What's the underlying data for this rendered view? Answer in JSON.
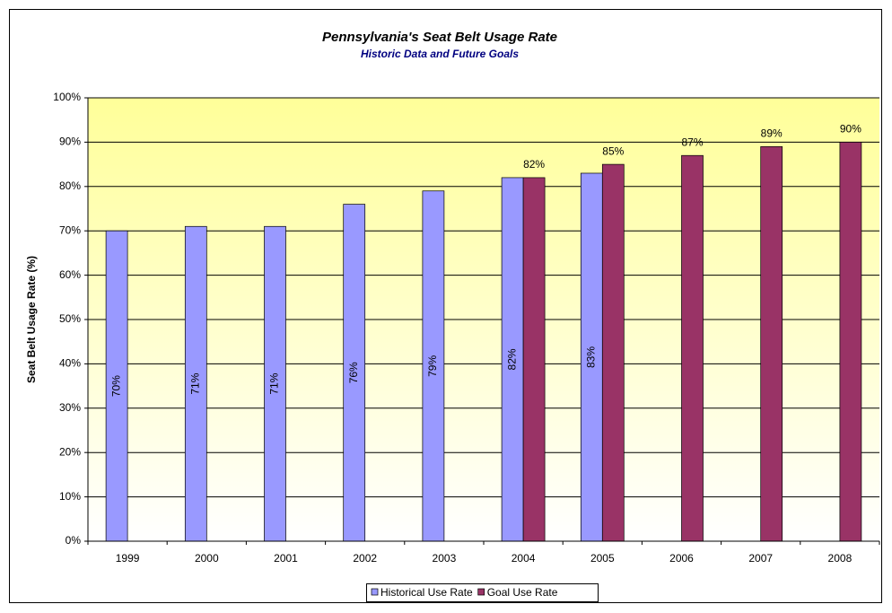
{
  "chart_data": {
    "type": "bar",
    "title": "Pennsylvania's Seat Belt Usage Rate",
    "subtitle": "Historic Data and Future Goals",
    "y_label": "Seat Belt Usage Rate (%)",
    "categories": [
      "1999",
      "2000",
      "2001",
      "2002",
      "2003",
      "2004",
      "2005",
      "2006",
      "2007",
      "2008"
    ],
    "series": [
      {
        "name": "Historical Use Rate",
        "color": "#9999ff",
        "values": [
          70,
          71,
          71,
          76,
          79,
          82,
          83,
          null,
          null,
          null
        ],
        "value_labels": [
          "70%",
          "71%",
          "71%",
          "76%",
          "79%",
          "82%",
          "83%",
          null,
          null,
          null
        ]
      },
      {
        "name": "Goal Use Rate",
        "color": "#993366",
        "values": [
          null,
          null,
          null,
          null,
          null,
          82,
          85,
          87,
          89,
          90
        ],
        "value_labels": [
          null,
          null,
          null,
          null,
          null,
          "82%",
          "85%",
          "87%",
          "89%",
          "90%"
        ]
      }
    ],
    "ylim": [
      0,
      100
    ],
    "yticks": [
      {
        "value": 0,
        "label": "0%"
      },
      {
        "value": 10,
        "label": "10%"
      },
      {
        "value": 20,
        "label": "20%"
      },
      {
        "value": 30,
        "label": "30%"
      },
      {
        "value": 40,
        "label": "40%"
      },
      {
        "value": 50,
        "label": "50%"
      },
      {
        "value": 60,
        "label": "60%"
      },
      {
        "value": 70,
        "label": "70%"
      },
      {
        "value": 80,
        "label": "80%"
      },
      {
        "value": 90,
        "label": "90%"
      },
      {
        "value": 100,
        "label": "100%"
      }
    ],
    "grid": true,
    "legend": "bottom"
  }
}
